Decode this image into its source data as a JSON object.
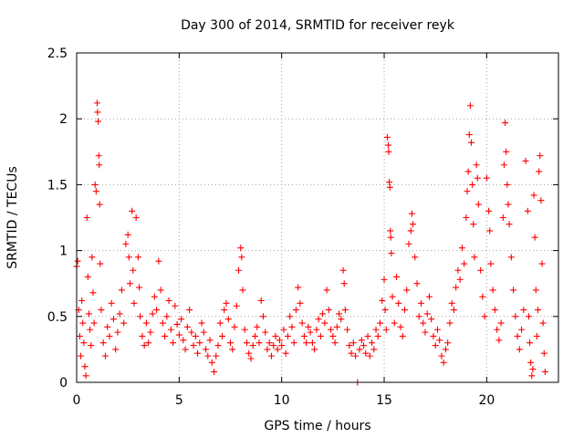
{
  "chart_data": {
    "type": "scatter",
    "title": "Day 300 of 2014, SRMTID for receiver reyk",
    "xlabel": "GPS time / hours",
    "ylabel": "SRMTID / TECUs",
    "xlim": [
      0,
      23.5
    ],
    "ylim": [
      0,
      2.5
    ],
    "xticks": [
      0,
      5,
      10,
      15,
      20
    ],
    "xtick_labels": [
      "0",
      "5",
      "10",
      "15",
      "20"
    ],
    "yticks": [
      0,
      0.5,
      1,
      1.5,
      2,
      2.5
    ],
    "ytick_labels": [
      "0",
      "0.5",
      "1",
      "1.5",
      "2",
      "2.5"
    ],
    "grid": true,
    "marker": "+",
    "color": "#ff0000",
    "series": [
      {
        "name": "SRMTID",
        "points": [
          [
            0.0,
            0.88
          ],
          [
            0.05,
            0.92
          ],
          [
            0.1,
            0.55
          ],
          [
            0.15,
            0.35
          ],
          [
            0.2,
            0.2
          ],
          [
            0.25,
            0.62
          ],
          [
            0.3,
            0.45
          ],
          [
            0.35,
            0.3
          ],
          [
            0.4,
            0.12
          ],
          [
            0.45,
            0.05
          ],
          [
            0.5,
            1.25
          ],
          [
            0.55,
            0.8
          ],
          [
            0.6,
            0.52
          ],
          [
            0.65,
            0.4
          ],
          [
            0.7,
            0.28
          ],
          [
            0.75,
            0.95
          ],
          [
            0.8,
            0.68
          ],
          [
            0.85,
            0.45
          ],
          [
            0.9,
            1.5
          ],
          [
            0.95,
            1.45
          ],
          [
            1.0,
            2.12
          ],
          [
            1.02,
            2.05
          ],
          [
            1.05,
            1.98
          ],
          [
            1.08,
            1.72
          ],
          [
            1.1,
            1.65
          ],
          [
            1.12,
            1.35
          ],
          [
            1.15,
            0.9
          ],
          [
            1.2,
            0.55
          ],
          [
            1.3,
            0.3
          ],
          [
            1.4,
            0.2
          ],
          [
            1.5,
            0.42
          ],
          [
            1.6,
            0.35
          ],
          [
            1.7,
            0.6
          ],
          [
            1.8,
            0.48
          ],
          [
            1.9,
            0.25
          ],
          [
            2.0,
            0.38
          ],
          [
            2.1,
            0.52
          ],
          [
            2.2,
            0.7
          ],
          [
            2.3,
            0.45
          ],
          [
            2.4,
            1.05
          ],
          [
            2.5,
            1.12
          ],
          [
            2.55,
            0.95
          ],
          [
            2.6,
            0.75
          ],
          [
            2.7,
            1.3
          ],
          [
            2.75,
            0.85
          ],
          [
            2.8,
            0.6
          ],
          [
            2.9,
            1.25
          ],
          [
            3.0,
            0.95
          ],
          [
            3.05,
            0.72
          ],
          [
            3.1,
            0.5
          ],
          [
            3.2,
            0.35
          ],
          [
            3.3,
            0.28
          ],
          [
            3.4,
            0.45
          ],
          [
            3.5,
            0.3
          ],
          [
            3.6,
            0.38
          ],
          [
            3.7,
            0.52
          ],
          [
            3.8,
            0.65
          ],
          [
            3.9,
            0.55
          ],
          [
            4.0,
            0.92
          ],
          [
            4.1,
            0.7
          ],
          [
            4.2,
            0.45
          ],
          [
            4.3,
            0.35
          ],
          [
            4.4,
            0.5
          ],
          [
            4.5,
            0.62
          ],
          [
            4.6,
            0.4
          ],
          [
            4.7,
            0.3
          ],
          [
            4.8,
            0.58
          ],
          [
            4.9,
            0.44
          ],
          [
            5.0,
            0.36
          ],
          [
            5.1,
            0.48
          ],
          [
            5.2,
            0.32
          ],
          [
            5.3,
            0.25
          ],
          [
            5.4,
            0.42
          ],
          [
            5.5,
            0.55
          ],
          [
            5.6,
            0.38
          ],
          [
            5.7,
            0.28
          ],
          [
            5.8,
            0.35
          ],
          [
            5.9,
            0.22
          ],
          [
            6.0,
            0.3
          ],
          [
            6.1,
            0.45
          ],
          [
            6.2,
            0.38
          ],
          [
            6.3,
            0.25
          ],
          [
            6.4,
            0.2
          ],
          [
            6.5,
            0.32
          ],
          [
            6.6,
            0.15
          ],
          [
            6.7,
            0.08
          ],
          [
            6.8,
            0.2
          ],
          [
            6.9,
            0.28
          ],
          [
            7.0,
            0.45
          ],
          [
            7.1,
            0.35
          ],
          [
            7.2,
            0.55
          ],
          [
            7.3,
            0.6
          ],
          [
            7.4,
            0.48
          ],
          [
            7.5,
            0.3
          ],
          [
            7.6,
            0.25
          ],
          [
            7.7,
            0.42
          ],
          [
            7.8,
            0.58
          ],
          [
            7.9,
            0.85
          ],
          [
            8.0,
            1.02
          ],
          [
            8.05,
            0.95
          ],
          [
            8.1,
            0.7
          ],
          [
            8.2,
            0.4
          ],
          [
            8.3,
            0.3
          ],
          [
            8.4,
            0.22
          ],
          [
            8.5,
            0.18
          ],
          [
            8.6,
            0.28
          ],
          [
            8.7,
            0.35
          ],
          [
            8.8,
            0.42
          ],
          [
            8.9,
            0.3
          ],
          [
            9.0,
            0.62
          ],
          [
            9.1,
            0.5
          ],
          [
            9.2,
            0.38
          ],
          [
            9.3,
            0.25
          ],
          [
            9.4,
            0.3
          ],
          [
            9.5,
            0.2
          ],
          [
            9.6,
            0.28
          ],
          [
            9.7,
            0.35
          ],
          [
            9.8,
            0.25
          ],
          [
            9.9,
            0.32
          ],
          [
            10.0,
            0.28
          ],
          [
            10.1,
            0.4
          ],
          [
            10.2,
            0.22
          ],
          [
            10.3,
            0.35
          ],
          [
            10.4,
            0.5
          ],
          [
            10.5,
            0.42
          ],
          [
            10.6,
            0.3
          ],
          [
            10.7,
            0.55
          ],
          [
            10.8,
            0.72
          ],
          [
            10.9,
            0.6
          ],
          [
            11.0,
            0.45
          ],
          [
            11.1,
            0.35
          ],
          [
            11.2,
            0.3
          ],
          [
            11.3,
            0.42
          ],
          [
            11.4,
            0.38
          ],
          [
            11.5,
            0.3
          ],
          [
            11.6,
            0.25
          ],
          [
            11.7,
            0.4
          ],
          [
            11.8,
            0.48
          ],
          [
            11.9,
            0.35
          ],
          [
            12.0,
            0.52
          ],
          [
            12.1,
            0.45
          ],
          [
            12.2,
            0.7
          ],
          [
            12.3,
            0.55
          ],
          [
            12.4,
            0.4
          ],
          [
            12.5,
            0.35
          ],
          [
            12.6,
            0.3
          ],
          [
            12.7,
            0.42
          ],
          [
            12.8,
            0.52
          ],
          [
            12.9,
            0.48
          ],
          [
            13.0,
            0.85
          ],
          [
            13.05,
            0.75
          ],
          [
            13.1,
            0.55
          ],
          [
            13.2,
            0.4
          ],
          [
            13.3,
            0.28
          ],
          [
            13.4,
            0.22
          ],
          [
            13.5,
            0.3
          ],
          [
            13.6,
            0.2
          ],
          [
            13.7,
            0.0
          ],
          [
            13.8,
            0.25
          ],
          [
            13.9,
            0.32
          ],
          [
            14.0,
            0.28
          ],
          [
            14.1,
            0.22
          ],
          [
            14.2,
            0.35
          ],
          [
            14.3,
            0.2
          ],
          [
            14.4,
            0.3
          ],
          [
            14.5,
            0.25
          ],
          [
            14.6,
            0.4
          ],
          [
            14.7,
            0.35
          ],
          [
            14.8,
            0.45
          ],
          [
            14.9,
            0.62
          ],
          [
            15.0,
            0.78
          ],
          [
            15.05,
            0.55
          ],
          [
            15.1,
            0.4
          ],
          [
            15.15,
            1.86
          ],
          [
            15.2,
            1.8
          ],
          [
            15.22,
            1.75
          ],
          [
            15.25,
            1.52
          ],
          [
            15.28,
            1.48
          ],
          [
            15.3,
            1.15
          ],
          [
            15.32,
            1.1
          ],
          [
            15.35,
            0.98
          ],
          [
            15.4,
            0.65
          ],
          [
            15.5,
            0.45
          ],
          [
            15.6,
            0.8
          ],
          [
            15.7,
            0.6
          ],
          [
            15.8,
            0.42
          ],
          [
            15.9,
            0.35
          ],
          [
            16.0,
            0.55
          ],
          [
            16.1,
            0.7
          ],
          [
            16.2,
            1.05
          ],
          [
            16.3,
            1.15
          ],
          [
            16.35,
            1.28
          ],
          [
            16.4,
            1.2
          ],
          [
            16.5,
            0.95
          ],
          [
            16.6,
            0.75
          ],
          [
            16.7,
            0.5
          ],
          [
            16.8,
            0.6
          ],
          [
            16.9,
            0.45
          ],
          [
            17.0,
            0.38
          ],
          [
            17.1,
            0.52
          ],
          [
            17.2,
            0.65
          ],
          [
            17.3,
            0.48
          ],
          [
            17.4,
            0.35
          ],
          [
            17.5,
            0.28
          ],
          [
            17.6,
            0.4
          ],
          [
            17.7,
            0.32
          ],
          [
            17.8,
            0.2
          ],
          [
            17.9,
            0.15
          ],
          [
            18.0,
            0.25
          ],
          [
            18.1,
            0.3
          ],
          [
            18.2,
            0.45
          ],
          [
            18.3,
            0.6
          ],
          [
            18.4,
            0.55
          ],
          [
            18.5,
            0.72
          ],
          [
            18.6,
            0.85
          ],
          [
            18.7,
            0.78
          ],
          [
            18.8,
            1.02
          ],
          [
            18.9,
            0.9
          ],
          [
            19.0,
            1.25
          ],
          [
            19.05,
            1.45
          ],
          [
            19.1,
            1.6
          ],
          [
            19.15,
            1.88
          ],
          [
            19.2,
            2.1
          ],
          [
            19.25,
            1.82
          ],
          [
            19.3,
            1.5
          ],
          [
            19.35,
            1.2
          ],
          [
            19.4,
            0.95
          ],
          [
            19.5,
            1.65
          ],
          [
            19.55,
            1.55
          ],
          [
            19.6,
            1.35
          ],
          [
            19.7,
            0.85
          ],
          [
            19.8,
            0.65
          ],
          [
            19.9,
            0.5
          ],
          [
            20.0,
            1.55
          ],
          [
            20.1,
            1.3
          ],
          [
            20.15,
            1.15
          ],
          [
            20.2,
            0.9
          ],
          [
            20.3,
            0.7
          ],
          [
            20.4,
            0.55
          ],
          [
            20.5,
            0.4
          ],
          [
            20.6,
            0.32
          ],
          [
            20.7,
            0.45
          ],
          [
            20.8,
            1.25
          ],
          [
            20.85,
            1.65
          ],
          [
            20.9,
            1.97
          ],
          [
            20.95,
            1.75
          ],
          [
            21.0,
            1.5
          ],
          [
            21.05,
            1.35
          ],
          [
            21.1,
            1.2
          ],
          [
            21.2,
            0.95
          ],
          [
            21.3,
            0.7
          ],
          [
            21.4,
            0.5
          ],
          [
            21.5,
            0.35
          ],
          [
            21.6,
            0.25
          ],
          [
            21.7,
            0.4
          ],
          [
            21.8,
            0.55
          ],
          [
            21.9,
            1.68
          ],
          [
            22.0,
            1.3
          ],
          [
            22.05,
            0.5
          ],
          [
            22.1,
            0.3
          ],
          [
            22.15,
            0.15
          ],
          [
            22.2,
            0.05
          ],
          [
            22.25,
            0.1
          ],
          [
            22.3,
            1.42
          ],
          [
            22.35,
            1.1
          ],
          [
            22.4,
            0.7
          ],
          [
            22.45,
            0.35
          ],
          [
            22.5,
            0.55
          ],
          [
            22.55,
            1.6
          ],
          [
            22.6,
            1.72
          ],
          [
            22.65,
            1.38
          ],
          [
            22.7,
            0.9
          ],
          [
            22.75,
            0.45
          ],
          [
            22.8,
            0.22
          ],
          [
            22.85,
            0.08
          ]
        ]
      }
    ]
  }
}
